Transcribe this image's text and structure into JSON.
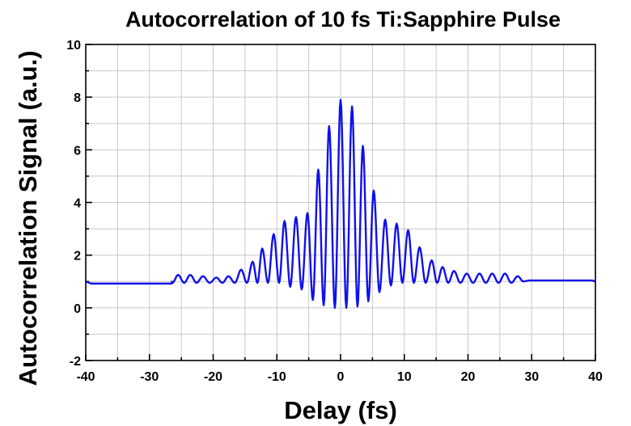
{
  "chart_data": {
    "type": "line",
    "title": "Autocorrelation of 10 fs Ti:Sapphire Pulse",
    "xlabel": "Delay (fs)",
    "ylabel": "Autocorrelation Signal (a.u.)",
    "xlim": [
      -40,
      40
    ],
    "ylim": [
      -2,
      10
    ],
    "xticks": [
      -40,
      -30,
      -20,
      -10,
      0,
      10,
      20,
      30,
      40
    ],
    "yticks": [
      -2,
      0,
      2,
      4,
      6,
      8,
      10
    ],
    "xtick_labels": [
      "-40",
      "-30",
      "-20",
      "-10",
      "0",
      "10",
      "20",
      "30",
      "40"
    ],
    "ytick_labels": [
      "-2",
      "0",
      "2",
      "4",
      "6",
      "8",
      "10"
    ],
    "grid": true,
    "legend": "none",
    "series_color": "#1010ee",
    "series": [
      {
        "peaks": [
          {
            "x": -25.5,
            "y": 1.25
          },
          {
            "x": -23.6,
            "y": 1.25
          },
          {
            "x": -21.6,
            "y": 1.2
          },
          {
            "x": -19.5,
            "y": 1.15
          },
          {
            "x": -17.6,
            "y": 1.2
          },
          {
            "x": -15.6,
            "y": 1.45
          },
          {
            "x": -13.8,
            "y": 1.75
          },
          {
            "x": -12.3,
            "y": 2.25
          },
          {
            "x": -10.5,
            "y": 2.8
          },
          {
            "x": -8.8,
            "y": 3.3
          },
          {
            "x": -7.0,
            "y": 3.45
          },
          {
            "x": -5.2,
            "y": 3.6
          },
          {
            "x": -3.5,
            "y": 5.25
          },
          {
            "x": -1.8,
            "y": 6.9
          },
          {
            "x": 0.0,
            "y": 7.9
          },
          {
            "x": 1.8,
            "y": 7.65
          },
          {
            "x": 3.5,
            "y": 6.15
          },
          {
            "x": 5.2,
            "y": 4.45
          },
          {
            "x": 7.0,
            "y": 3.35
          },
          {
            "x": 8.8,
            "y": 3.2
          },
          {
            "x": 10.6,
            "y": 2.95
          },
          {
            "x": 12.4,
            "y": 2.3
          },
          {
            "x": 14.3,
            "y": 1.8
          },
          {
            "x": 16.0,
            "y": 1.55
          },
          {
            "x": 17.8,
            "y": 1.4
          },
          {
            "x": 19.8,
            "y": 1.3
          },
          {
            "x": 21.8,
            "y": 1.3
          },
          {
            "x": 23.8,
            "y": 1.3
          },
          {
            "x": 25.8,
            "y": 1.3
          },
          {
            "x": 27.8,
            "y": 1.2
          }
        ],
        "troughs": [
          {
            "x": -2.6,
            "y": 0.1
          },
          {
            "x": -0.9,
            "y": 0.0
          },
          {
            "x": 0.9,
            "y": 0.0
          },
          {
            "x": 2.6,
            "y": 0.05
          },
          {
            "x": -4.3,
            "y": 0.3
          },
          {
            "x": 4.3,
            "y": 0.25
          },
          {
            "x": -6.1,
            "y": 0.7
          },
          {
            "x": 6.1,
            "y": 0.6
          },
          {
            "x": -7.9,
            "y": 0.8
          },
          {
            "x": 7.9,
            "y": 0.85
          }
        ],
        "baseline": 1.0
      }
    ]
  }
}
